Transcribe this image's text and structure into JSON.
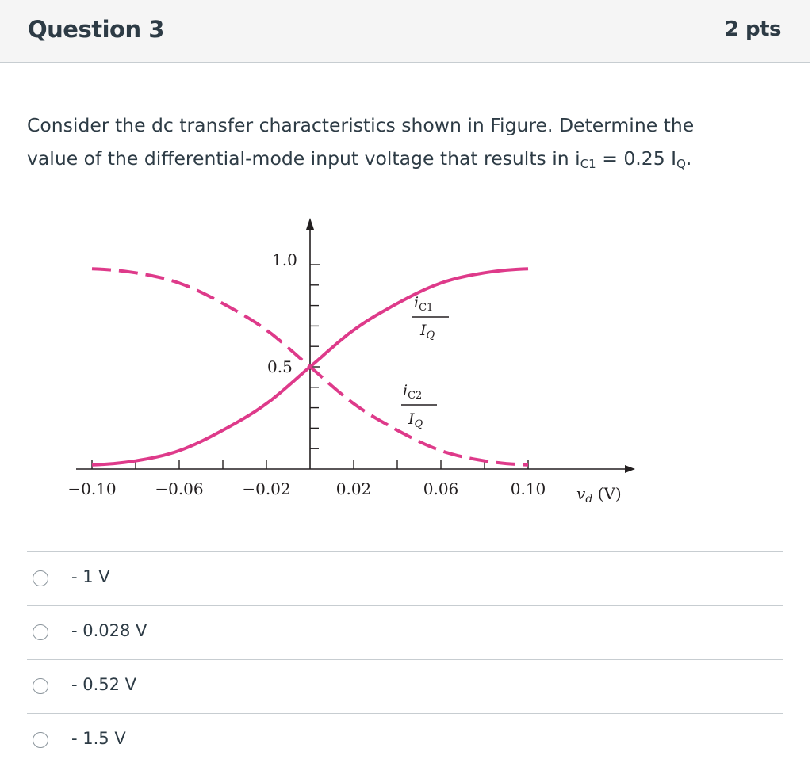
{
  "question": {
    "title": "Question 3",
    "points": "2 pts",
    "text_line1": "Consider the dc transfer characteristics shown in Figure. Determine the",
    "text_line2_pre": "value of the differential-mode input voltage that results in i",
    "sub_c1": "C1",
    "text_mid": " = 0.25 I",
    "sub_q": "Q",
    "text_end": "."
  },
  "figure": {
    "x_tick_labels": [
      "−0.10",
      "−0.06",
      "−0.02",
      "0.02",
      "0.06",
      "0.10"
    ],
    "x_axis_label": "v",
    "x_axis_label_sub": "d",
    "x_axis_unit": " (V)",
    "y_label_top": "1.0",
    "y_label_mid": "0.5",
    "curve1_num": "i",
    "curve1_num_sub": "C1",
    "curve1_den": "I",
    "curve1_den_sub": "Q",
    "curve2_num": "i",
    "curve2_num_sub": "C2",
    "curve2_den": "I",
    "curve2_den_sub": "Q",
    "curve_color": "#de3a8a"
  },
  "chart_data": {
    "type": "line",
    "title": "",
    "xlabel": "vd (V)",
    "ylabel": "",
    "xlim": [
      -0.11,
      0.11
    ],
    "ylim": [
      0,
      1.0
    ],
    "series": [
      {
        "name": "iC1/IQ",
        "style": "solid",
        "x": [
          -0.1,
          -0.08,
          -0.06,
          -0.04,
          -0.02,
          0.0,
          0.02,
          0.04,
          0.06,
          0.08,
          0.1
        ],
        "values": [
          0.02,
          0.04,
          0.09,
          0.19,
          0.32,
          0.5,
          0.68,
          0.81,
          0.91,
          0.96,
          0.98
        ]
      },
      {
        "name": "iC2/IQ",
        "style": "dashed",
        "x": [
          -0.1,
          -0.08,
          -0.06,
          -0.04,
          -0.02,
          0.0,
          0.02,
          0.04,
          0.06,
          0.08,
          0.1
        ],
        "values": [
          0.98,
          0.96,
          0.91,
          0.81,
          0.68,
          0.5,
          0.32,
          0.19,
          0.09,
          0.04,
          0.02
        ]
      }
    ]
  },
  "answers": [
    {
      "label": "- 1 V"
    },
    {
      "label": "- 0.028 V"
    },
    {
      "label": "- 0.52 V"
    },
    {
      "label": "- 1.5 V"
    }
  ]
}
